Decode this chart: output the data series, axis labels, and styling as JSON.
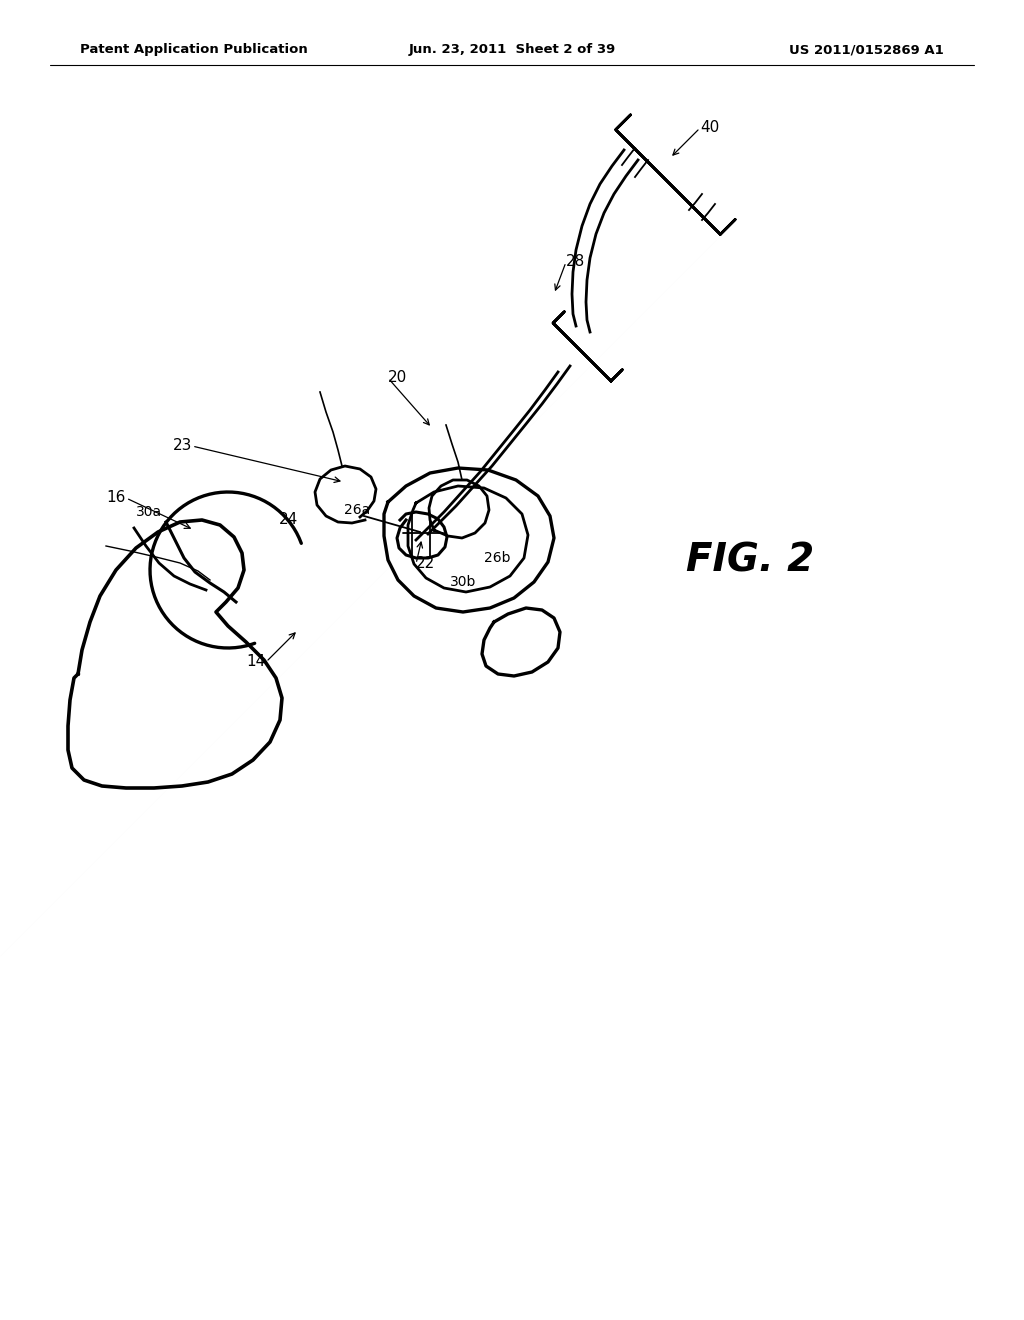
{
  "bg_color": "#ffffff",
  "header_left": "Patent Application Publication",
  "header_center": "Jun. 23, 2011  Sheet 2 of 39",
  "header_right": "US 2011/0152869 A1",
  "fig_label": "FIG. 2",
  "line_color": "#000000",
  "text_color": "#000000",
  "header_fontsize": 9.5,
  "label_fontsize": 11,
  "fig_label_fontsize": 28
}
